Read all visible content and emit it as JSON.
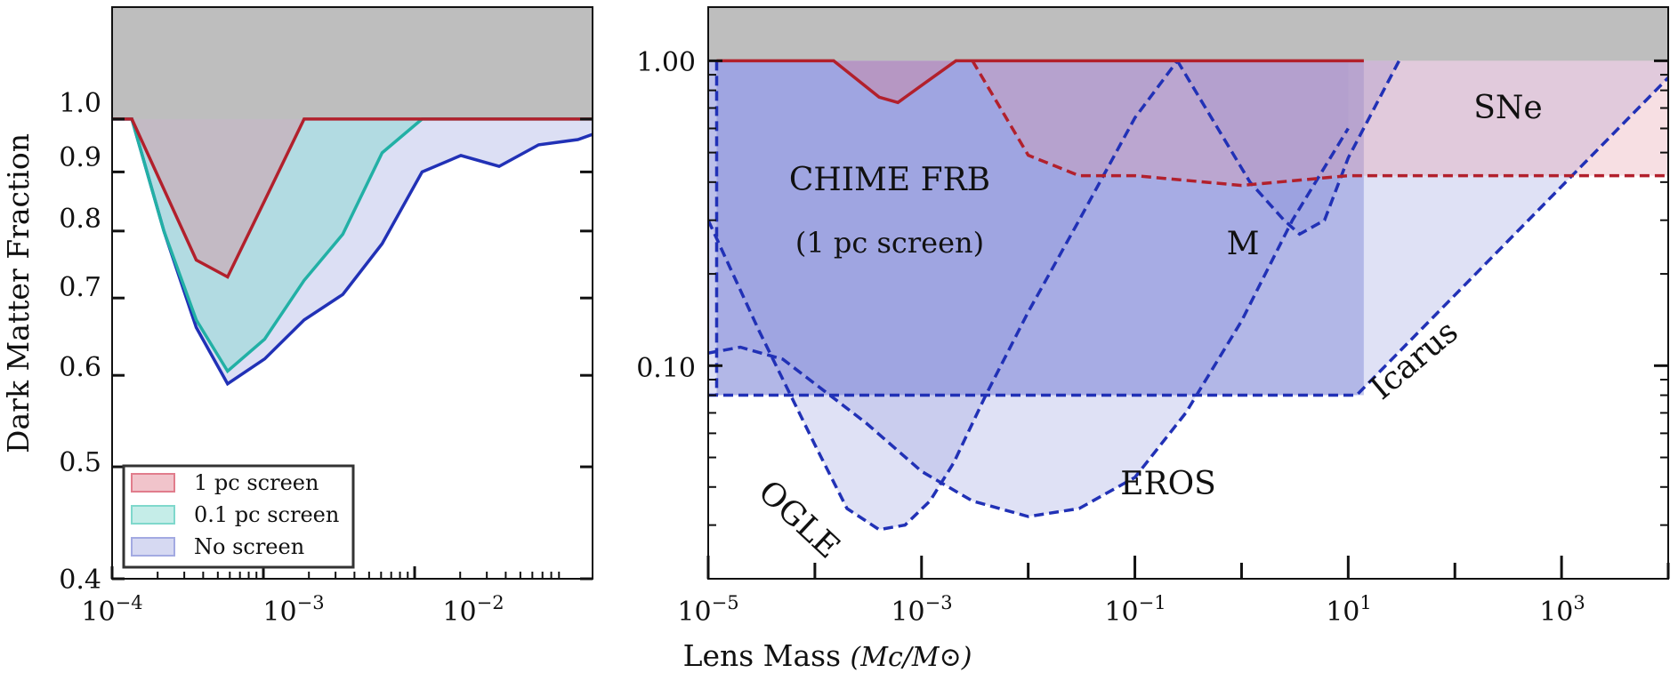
{
  "colors": {
    "red": "#b2202c",
    "teal": "#22b0a5",
    "blue": "#2131b6",
    "red_fill": "#e17d8c",
    "teal_fill": "#7fd8cc",
    "blue_fill": "#a3aae2",
    "blue_fill_mid": "#7c86d6",
    "sne_fill": "#e59ba7",
    "gray": "#bebebe"
  },
  "chart_data": [
    {
      "type": "area",
      "panel": "left",
      "xscale": "log",
      "yscale": "log",
      "xlim": [
        0.0001,
        0.15
      ],
      "ylim": [
        0.4,
        1.25
      ],
      "xticks": [
        {
          "value": 0.0001,
          "base": "10",
          "exp": "−4"
        },
        {
          "value": 0.001,
          "base": "10",
          "exp": "−3"
        },
        {
          "value": 0.01,
          "base": "10",
          "exp": "−2"
        }
      ],
      "yticks": [
        {
          "value": 0.4,
          "label": "0.4"
        },
        {
          "value": 0.5,
          "label": "0.5"
        },
        {
          "value": 0.6,
          "label": "0.6"
        },
        {
          "value": 0.7,
          "label": "0.7"
        },
        {
          "value": 0.8,
          "label": "0.8"
        },
        {
          "value": 0.9,
          "label": "0.9"
        },
        {
          "value": 1.0,
          "label": "1.0"
        }
      ],
      "ylabel": "Dark Matter Fraction",
      "excluded_region_above": 1.0,
      "series": [
        {
          "name": "No screen",
          "x": [
            0.0001,
            0.000135,
            0.00022,
            0.00036,
            0.00058,
            0.00102,
            0.00186,
            0.00335,
            0.0061,
            0.0112,
            0.0202,
            0.0362,
            0.066,
            0.12,
            0.15
          ],
          "y": [
            1.0,
            1.0,
            0.8,
            0.66,
            0.59,
            0.62,
            0.67,
            0.705,
            0.78,
            0.9,
            0.93,
            0.91,
            0.95,
            0.96,
            0.97
          ]
        },
        {
          "name": "0.1 pc screen",
          "x": [
            0.0001,
            0.000135,
            0.00022,
            0.00036,
            0.00058,
            0.00102,
            0.00186,
            0.00335,
            0.0061,
            0.0112,
            0.0202,
            0.15
          ],
          "y": [
            1.0,
            1.0,
            0.8,
            0.67,
            0.605,
            0.645,
            0.725,
            0.795,
            0.935,
            1.0,
            1.0,
            1.0
          ]
        },
        {
          "name": "1 pc screen",
          "x": [
            0.0001,
            0.000135,
            0.00036,
            0.00058,
            0.00102,
            0.00186,
            0.15
          ],
          "y": [
            1.0,
            1.0,
            0.755,
            0.73,
            0.85,
            1.0,
            1.0
          ]
        }
      ],
      "legend": {
        "placement": "lower-left",
        "entries": [
          "1 pc screen",
          "0.1 pc screen",
          "No screen"
        ]
      }
    },
    {
      "type": "area",
      "panel": "right",
      "xscale": "log",
      "yscale": "log",
      "xlim": [
        1e-05,
        10000
      ],
      "ylim": [
        0.02,
        1.5
      ],
      "xticks": [
        {
          "value": 1e-05,
          "base": "10",
          "exp": "−5"
        },
        {
          "value": 0.001,
          "base": "10",
          "exp": "−3"
        },
        {
          "value": 0.1,
          "base": "10",
          "exp": "−1"
        },
        {
          "value": 10,
          "base": "10",
          "exp": "1"
        },
        {
          "value": 1000,
          "base": "10",
          "exp": "3"
        }
      ],
      "yticks": [
        {
          "value": 0.1,
          "label": "0.10"
        },
        {
          "value": 1.0,
          "label": "1.00"
        }
      ],
      "xlabel": "Lens Mass",
      "xlabel_units": "(Mc/M⊙)",
      "excluded_region_above": 1.0,
      "annotations": [
        "CHIME FRB",
        "(1 pc screen)",
        "M",
        "SNe",
        "Icarus",
        "EROS",
        "OGLE"
      ],
      "series": [
        {
          "name": "CHIME FRB (1 pc screen)",
          "x": [
            1.2e-05,
            0.00015,
            0.0004,
            0.0006,
            0.0011,
            0.0021,
            14
          ],
          "y": [
            1.0,
            1.0,
            0.76,
            0.73,
            0.85,
            1.0,
            1.0
          ]
        },
        {
          "name": "SNe",
          "x": [
            0.003,
            0.01,
            0.03,
            0.1,
            1.0,
            10,
            10000
          ],
          "y": [
            1.0,
            0.49,
            0.42,
            0.42,
            0.39,
            0.42,
            0.42
          ]
        },
        {
          "name": "M",
          "x": [
            0.25,
            0.6,
            1.2,
            2.5,
            3.5,
            6,
            10,
            30
          ],
          "y": [
            1.0,
            0.6,
            0.4,
            0.3,
            0.27,
            0.3,
            0.48,
            1.0
          ]
        },
        {
          "name": "Icarus",
          "x": [
            1e-05,
            1.2e-05,
            12,
            10000
          ],
          "y": [
            0.08,
            0.08,
            0.08,
            0.88
          ]
        },
        {
          "name": "EROS",
          "x": [
            1e-05,
            2e-05,
            5e-05,
            0.0003,
            0.001,
            0.003,
            0.01,
            0.03,
            0.1,
            0.3,
            1,
            3,
            10
          ],
          "y": [
            0.11,
            0.115,
            0.105,
            0.065,
            0.045,
            0.036,
            0.032,
            0.034,
            0.043,
            0.07,
            0.14,
            0.3,
            0.6
          ]
        },
        {
          "name": "OGLE",
          "x": [
            1e-05,
            3e-05,
            0.0001,
            0.0002,
            0.0004,
            0.0007,
            0.0012,
            0.002,
            0.004,
            0.01,
            0.03,
            0.1,
            0.25
          ],
          "y": [
            0.3,
            0.13,
            0.055,
            0.034,
            0.029,
            0.03,
            0.036,
            0.048,
            0.08,
            0.15,
            0.3,
            0.65,
            1.0
          ]
        }
      ]
    }
  ]
}
